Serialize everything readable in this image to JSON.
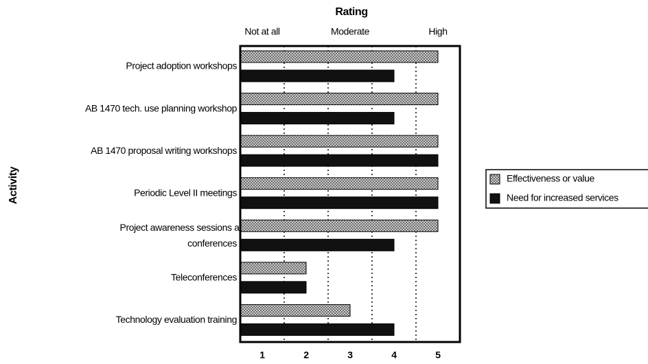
{
  "chart_data": {
    "type": "hbar",
    "y_axis_label": "Activity",
    "x_axis_label": "Rating",
    "categories": [
      "Project adoption workshops",
      "AB 1470 tech. use planning workshop",
      "AB 1470 proposal writing workshops",
      "Periodic Level II meetings",
      "Project awareness sessions at\nconferences",
      "Teleconferences",
      "Technology evaluation training"
    ],
    "series": [
      {
        "name": "Effectiveness or value",
        "color": "#bbbbbb",
        "pattern": "crosshatch",
        "values": [
          5,
          5,
          5,
          5,
          5,
          2,
          3
        ]
      },
      {
        "name": "Need for increased services",
        "color": "#111111",
        "pattern": "solid",
        "values": [
          4,
          4,
          5,
          5,
          4,
          2,
          4
        ]
      }
    ],
    "xlim": [
      0.5,
      5.5
    ],
    "xticks": [
      1,
      2,
      3,
      4,
      5
    ],
    "gridlines": [
      1.5,
      2.5,
      3.5,
      4.5
    ],
    "scale_labels": [
      {
        "value": 1,
        "label": "Not at all"
      },
      {
        "value": 3,
        "label": "Moderate"
      },
      {
        "value": 5,
        "label": "High"
      }
    ],
    "legend": "right"
  }
}
